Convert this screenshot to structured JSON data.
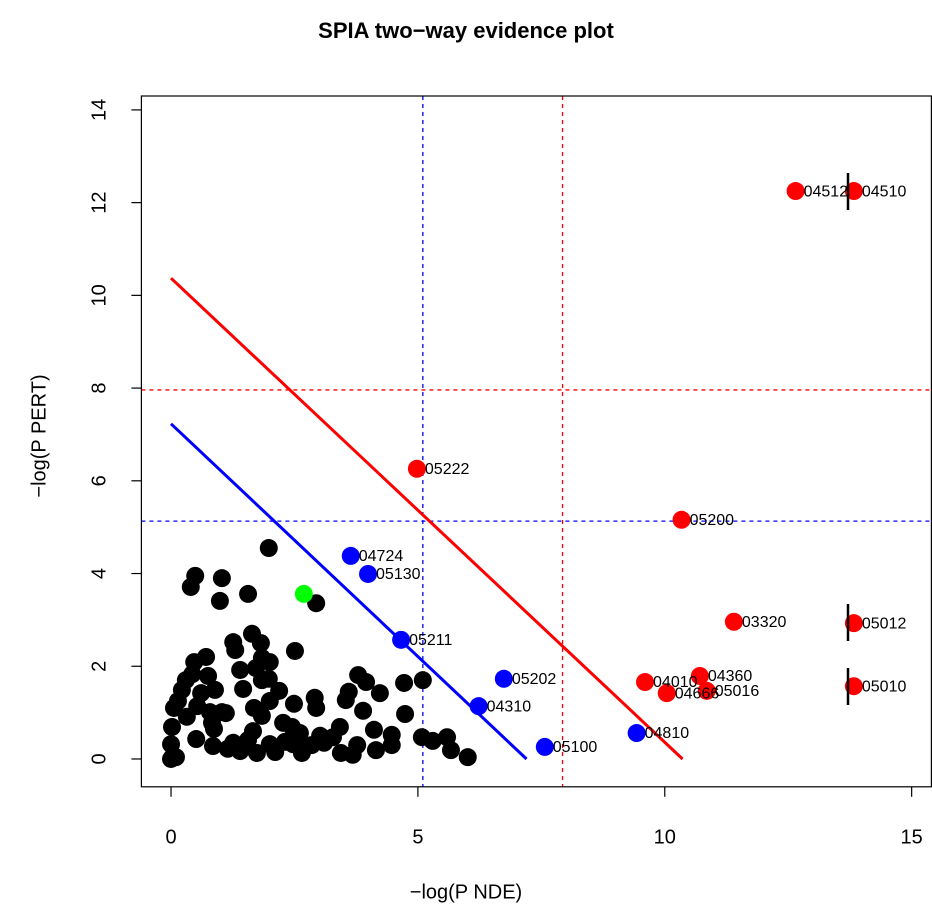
{
  "chart_data": {
    "type": "scatter",
    "title": "SPIA two−way evidence plot",
    "x_label": "−log(P NDE)",
    "y_label": "−log(P PERT)",
    "xlim": [
      -0.6,
      15.4
    ],
    "ylim": [
      -0.6,
      14.3
    ],
    "xticks": [
      0,
      5,
      10,
      15
    ],
    "yticks": [
      0,
      2,
      4,
      6,
      8,
      10,
      12,
      14
    ],
    "series": [
      {
        "color": "#000000",
        "x": [
          1.98,
          0.49,
          0.4,
          1.03,
          0.99,
          1.56,
          2.94,
          1.64,
          1.82,
          1.26,
          1.3,
          1.4,
          1.46,
          1.84,
          2.0,
          1.72,
          1.84,
          1.98,
          2.51,
          0.71,
          0.75,
          0.47,
          0.43,
          0.3,
          0.22,
          0.14,
          0.06,
          0.02,
          0.0,
          0.04,
          0.0,
          0.1,
          0.32,
          0.53,
          0.51,
          0.61,
          0.89,
          0.79,
          0.83,
          1.03,
          1.11,
          1.26,
          1.4,
          1.15,
          0.85,
          0.87,
          1.68,
          1.84,
          1.66,
          2.0,
          2.11,
          1.74,
          1.56,
          2.27,
          2.45,
          2.31,
          2.47,
          2.59,
          2.61,
          2.65,
          2.85,
          2.91,
          2.94,
          3.02,
          3.1,
          3.28,
          3.42,
          3.54,
          3.6,
          3.79,
          4.23,
          3.44,
          3.77,
          3.68,
          3.89,
          4.11,
          4.15,
          4.47,
          4.47,
          4.72,
          4.74,
          5.1,
          5.08,
          5.3,
          5.59,
          5.67,
          6.01,
          2.0,
          2.49,
          2.19,
          3.95
        ],
        "y": [
          4.55,
          3.95,
          3.71,
          3.9,
          3.41,
          3.56,
          3.36,
          2.7,
          2.5,
          2.52,
          2.35,
          1.92,
          1.51,
          2.18,
          2.09,
          1.96,
          1.7,
          1.73,
          2.33,
          2.2,
          1.79,
          2.09,
          1.83,
          1.7,
          1.49,
          1.25,
          1.1,
          0.69,
          0.32,
          0.06,
          0.0,
          0.04,
          0.91,
          1.14,
          0.43,
          1.42,
          1.49,
          1.01,
          0.78,
          1.01,
          0.99,
          0.35,
          0.17,
          0.22,
          0.28,
          0.65,
          1.1,
          0.93,
          0.6,
          0.32,
          0.15,
          0.13,
          0.41,
          0.78,
          0.69,
          0.37,
          0.32,
          0.3,
          0.56,
          0.13,
          0.3,
          1.32,
          1.1,
          0.5,
          0.35,
          0.47,
          0.69,
          1.27,
          1.45,
          1.81,
          1.42,
          0.13,
          0.3,
          0.09,
          1.04,
          0.63,
          0.19,
          0.3,
          0.52,
          1.64,
          0.97,
          1.7,
          0.47,
          0.39,
          0.47,
          0.19,
          0.04,
          1.25,
          1.19,
          1.47,
          1.66
        ]
      },
      {
        "color": "#00ff00",
        "x": [
          2.69
        ],
        "y": [
          3.56
        ]
      },
      {
        "color": "#0000ff",
        "x": [
          3.64,
          3.99,
          4.66,
          6.74,
          6.23,
          9.43,
          7.57
        ],
        "y": [
          4.38,
          3.99,
          2.57,
          1.73,
          1.14,
          0.56,
          0.26
        ],
        "labels": [
          "04724",
          "05130",
          "05211",
          "05202",
          "04310",
          "04810",
          "05100"
        ]
      },
      {
        "color": "#ff0000",
        "x": [
          12.65,
          13.83,
          4.98,
          10.34,
          11.4,
          13.83,
          9.6,
          10.71,
          10.04,
          10.85,
          13.83
        ],
        "y": [
          12.25,
          12.25,
          6.26,
          5.16,
          2.96,
          2.93,
          1.66,
          1.79,
          1.42,
          1.47,
          1.57
        ],
        "labels": [
          "04512",
          "04510",
          "05222",
          "05200",
          "03320",
          "05012",
          "04010",
          "04360",
          "04666",
          "05016",
          "05010"
        ]
      }
    ],
    "lines": [
      {
        "color": "#ff0000",
        "x": [
          0,
          10.36
        ],
        "y": [
          10.37,
          0
        ]
      },
      {
        "color": "#0000ff",
        "x": [
          0,
          7.2
        ],
        "y": [
          7.23,
          0
        ]
      }
    ],
    "vlines": [
      {
        "color": "#0000ff",
        "value": 5.1
      },
      {
        "color": "#ff0000",
        "value": 7.93
      }
    ],
    "hlines": [
      {
        "color": "#ff0000",
        "value": 7.96
      },
      {
        "color": "#0000ff",
        "value": 5.13
      }
    ]
  }
}
